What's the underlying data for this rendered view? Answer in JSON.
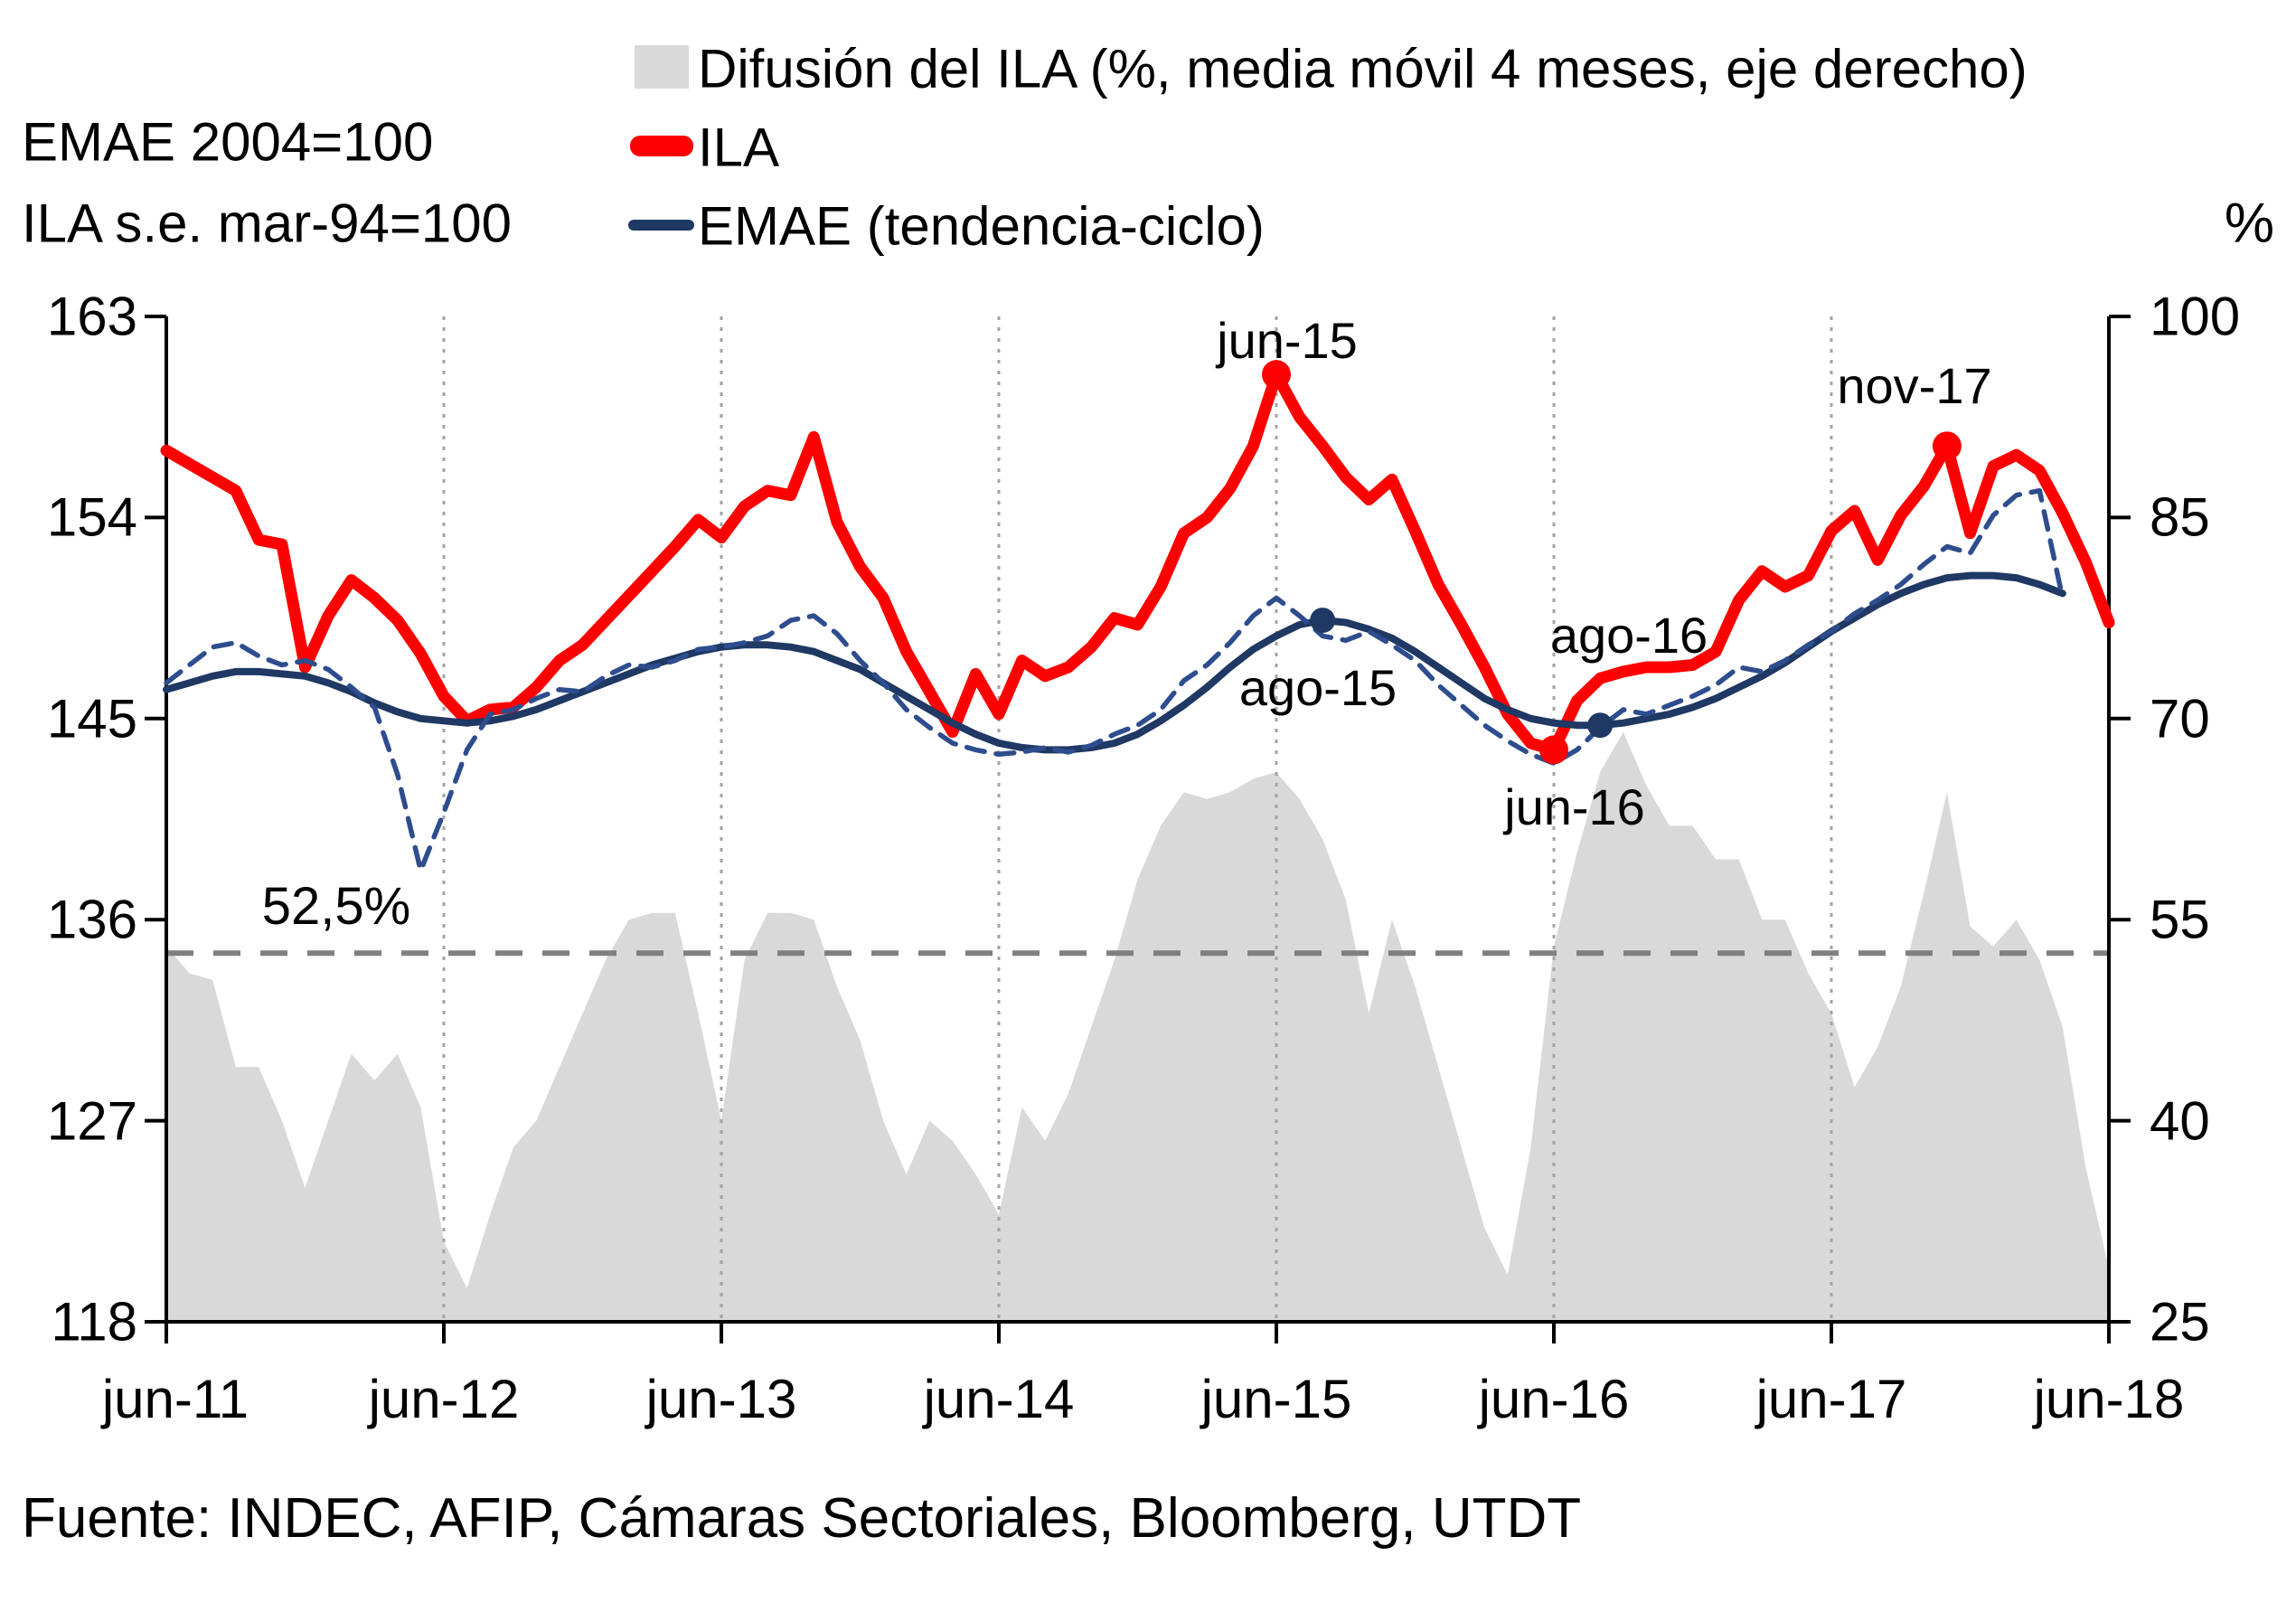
{
  "header": {
    "scale_note_line1": "EMAE 2004=100",
    "scale_note_line2": "ILA s.e. mar-94=100",
    "right_axis_unit": "%"
  },
  "legend": {
    "items": [
      {
        "label": "Difusión del ILA (%, media móvil 4 meses, eje derecho)",
        "swatch": "area",
        "color": "#d9d9d9"
      },
      {
        "label": "ILA",
        "swatch": "thick-line",
        "color": "#ff0000"
      },
      {
        "label": "EMAE (tendencia-ciclo)",
        "swatch": "line",
        "color": "#1f3864"
      }
    ]
  },
  "source": "Fuente: INDEC, AFIP, Cámaras Sectoriales, Bloomberg, UTDT",
  "chart_data": {
    "type": "line",
    "x_start_month": "jun-11",
    "x_end_month": "jun-18",
    "x_axis": {
      "ticks": [
        "jun-11",
        "jun-12",
        "jun-13",
        "jun-14",
        "jun-15",
        "jun-16",
        "jun-17",
        "jun-18"
      ],
      "gridline_month_indices": [
        12,
        24,
        36,
        48,
        60,
        72
      ]
    },
    "left_axis": {
      "ticks": [
        163,
        154,
        145,
        136,
        127,
        118
      ],
      "range": [
        118,
        163
      ]
    },
    "right_axis": {
      "ticks": [
        100,
        85,
        70,
        55,
        40,
        25
      ],
      "range": [
        25,
        100
      ]
    },
    "reference_line": {
      "axis": "right",
      "value": 52.5,
      "label": "52,5%",
      "color": "#7f7f7f",
      "label_x": 372,
      "label_y": 1022
    },
    "series": [
      {
        "id": "difusion_ila",
        "label": "Difusión del ILA (%, media móvil 4 meses, eje derecho)",
        "type": "area",
        "axis": "right",
        "color": "#d9d9d9",
        "values": [
          53,
          51,
          50.5,
          44,
          44,
          40,
          35,
          40,
          45,
          43,
          45,
          41,
          31,
          27.5,
          33,
          38,
          40,
          44,
          48,
          52,
          55,
          55.5,
          55.5,
          48,
          40,
          52,
          55.5,
          55.5,
          55,
          50,
          46,
          40,
          36,
          40,
          38.5,
          36,
          33,
          41,
          38.5,
          42,
          47,
          52,
          58,
          62,
          64.5,
          64,
          64.5,
          65.5,
          66,
          64,
          61,
          56.5,
          48,
          55,
          50,
          44,
          38,
          32,
          28.5,
          38,
          53,
          60,
          66,
          69,
          65,
          62,
          62,
          59.5,
          59.5,
          55,
          55,
          51,
          48,
          42.5,
          45.5,
          50,
          57,
          64.5,
          54.5,
          53,
          55,
          52,
          47,
          36.5,
          29
        ]
      },
      {
        "id": "ila",
        "label": "ILA",
        "type": "line",
        "axis": "left",
        "color": "#ff0000",
        "width": 13,
        "dash": null,
        "values": [
          157.0,
          156.4,
          155.8,
          155.2,
          153.0,
          152.8,
          147.3,
          149.6,
          151.2,
          150.4,
          149.4,
          147.9,
          146.0,
          144.9,
          145.4,
          145.5,
          146.4,
          147.6,
          148.3,
          149.4,
          150.5,
          151.6,
          152.7,
          153.9,
          153.1,
          154.5,
          155.2,
          155.0,
          157.6,
          153.8,
          151.8,
          150.4,
          148.0,
          146.2,
          144.4,
          147.0,
          145.2,
          147.6,
          146.9,
          147.3,
          148.2,
          149.5,
          149.2,
          150.9,
          153.3,
          154.0,
          155.3,
          157.2,
          160.4,
          158.5,
          157.2,
          155.8,
          154.8,
          155.7,
          153.4,
          151.0,
          149.2,
          147.3,
          145.2,
          143.9,
          143.6,
          145.8,
          146.8,
          147.1,
          147.3,
          147.3,
          147.4,
          148.0,
          150.3,
          151.6,
          150.9,
          151.4,
          153.4,
          154.3,
          152.1,
          154.1,
          155.4,
          157.2,
          153.3,
          156.3,
          156.8,
          156.1,
          154.2,
          152.0,
          149.3
        ]
      },
      {
        "id": "emae_tendencia_ciclo",
        "label": "EMAE (tendencia-ciclo)",
        "type": "line",
        "axis": "left",
        "color": "#1f3864",
        "width": 8,
        "dash": null,
        "values": [
          146.3,
          146.6,
          146.9,
          147.1,
          147.1,
          147.0,
          146.9,
          146.6,
          146.2,
          145.7,
          145.3,
          145.0,
          144.9,
          144.8,
          144.9,
          145.1,
          145.4,
          145.8,
          146.2,
          146.6,
          147.0,
          147.4,
          147.7,
          148.0,
          148.2,
          148.3,
          148.3,
          148.2,
          148.0,
          147.6,
          147.2,
          146.6,
          146.0,
          145.4,
          144.8,
          144.3,
          143.9,
          143.7,
          143.6,
          143.6,
          143.7,
          143.9,
          144.3,
          144.9,
          145.6,
          146.4,
          147.3,
          148.1,
          148.7,
          149.2,
          149.4,
          149.3,
          149.0,
          148.6,
          148.0,
          147.3,
          146.6,
          145.9,
          145.4,
          145.0,
          144.8,
          144.7,
          144.7,
          144.8,
          145.0,
          145.2,
          145.5,
          145.9,
          146.4,
          146.9,
          147.5,
          148.2,
          148.9,
          149.5,
          150.1,
          150.6,
          151.0,
          151.3,
          151.4,
          151.4,
          151.3,
          151.0,
          150.6
        ]
      },
      {
        "id": "emae_dashed",
        "label": null,
        "type": "line",
        "axis": "left",
        "color": "#2e4d8e",
        "width": 5.5,
        "dash": "20 13",
        "values": [
          146.6,
          147.4,
          148.2,
          148.4,
          147.8,
          147.4,
          147.6,
          147.2,
          146.4,
          145.5,
          142.5,
          138.2,
          140.8,
          143.6,
          145.2,
          145.4,
          145.9,
          146.3,
          146.2,
          146.9,
          147.4,
          147.3,
          147.6,
          148.1,
          148.2,
          148.4,
          148.7,
          149.4,
          149.6,
          148.8,
          147.6,
          146.6,
          145.4,
          144.6,
          143.9,
          143.6,
          143.4,
          143.5,
          143.7,
          143.5,
          143.8,
          144.3,
          144.7,
          145.4,
          146.7,
          147.4,
          148.4,
          149.6,
          150.4,
          149.6,
          148.7,
          148.5,
          148.9,
          148.3,
          147.6,
          146.5,
          145.6,
          144.7,
          144.0,
          143.4,
          143.0,
          143.6,
          144.6,
          145.4,
          145.2,
          145.6,
          146.0,
          146.5,
          147.3,
          147.1,
          147.6,
          148.3,
          148.9,
          149.7,
          150.3,
          151.0,
          151.9,
          152.7,
          152.4,
          154.1,
          155.0,
          155.2,
          150.4
        ]
      }
    ],
    "markers": [
      {
        "series": "ila",
        "label": "jun-15",
        "month_index": 48,
        "value": 160.4,
        "color": "#ff0000",
        "r": 16,
        "label_x": 1424,
        "label_y": 396
      },
      {
        "series": "ila",
        "label": "jun-16",
        "month_index": 60,
        "value": 143.6,
        "color": "#ff0000",
        "r": 16,
        "label_x": 1742,
        "label_y": 912
      },
      {
        "series": "ila",
        "label": "nov-17",
        "month_index": 77,
        "value": 157.2,
        "color": "#ff0000",
        "r": 16,
        "label_x": 2118,
        "label_y": 446
      },
      {
        "series": "emae_tendencia_ciclo",
        "label": "ago-15",
        "month_index": 50,
        "value": 149.4,
        "color": "#1f3864",
        "r": 14,
        "label_x": 1458,
        "label_y": 780
      },
      {
        "series": "emae_tendencia_ciclo",
        "label": "ago-16",
        "month_index": 62,
        "value": 144.7,
        "color": "#1f3864",
        "r": 14,
        "label_x": 1802,
        "label_y": 722
      }
    ],
    "styles": {
      "gridline_color": "#a3a3a3",
      "axis_color": "#000000",
      "background": "#ffffff"
    }
  }
}
